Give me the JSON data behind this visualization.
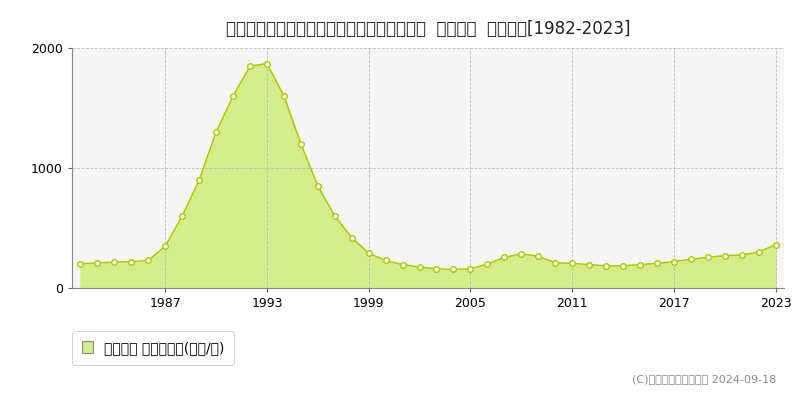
{
  "title": "北海道札幌市中央区北１条西７丁目３番３外  公示地価  地価推移[1982-2023]",
  "years": [
    1982,
    1983,
    1984,
    1985,
    1986,
    1987,
    1988,
    1989,
    1990,
    1991,
    1992,
    1993,
    1994,
    1995,
    1996,
    1997,
    1998,
    1999,
    2000,
    2001,
    2002,
    2003,
    2004,
    2005,
    2006,
    2007,
    2008,
    2009,
    2010,
    2011,
    2012,
    2013,
    2014,
    2015,
    2016,
    2017,
    2018,
    2019,
    2020,
    2021,
    2022,
    2023
  ],
  "values": [
    200,
    210,
    215,
    220,
    230,
    350,
    600,
    900,
    1300,
    1600,
    1850,
    1870,
    1600,
    1200,
    850,
    600,
    420,
    290,
    230,
    195,
    175,
    160,
    155,
    160,
    200,
    255,
    285,
    265,
    210,
    205,
    195,
    185,
    185,
    195,
    205,
    220,
    240,
    255,
    270,
    275,
    300,
    360
  ],
  "fill_color": "#d4ed8a",
  "line_color": "#a8c800",
  "marker_color": "#ffffff",
  "marker_edge_color": "#a8c800",
  "bg_color": "#ffffff",
  "plot_bg_color": "#f5f5f5",
  "grid_color": "#bbbbbb",
  "ylim": [
    0,
    2000
  ],
  "yticks": [
    0,
    1000,
    2000
  ],
  "xticks": [
    1987,
    1993,
    1999,
    2005,
    2011,
    2017,
    2023
  ],
  "legend_label": "公示地価 平均坪単価(万円/坪)",
  "copyright_text": "(C)土地価格ドットコム 2024-09-18",
  "title_fontsize": 12,
  "axis_fontsize": 9,
  "legend_fontsize": 10,
  "copyright_fontsize": 8
}
